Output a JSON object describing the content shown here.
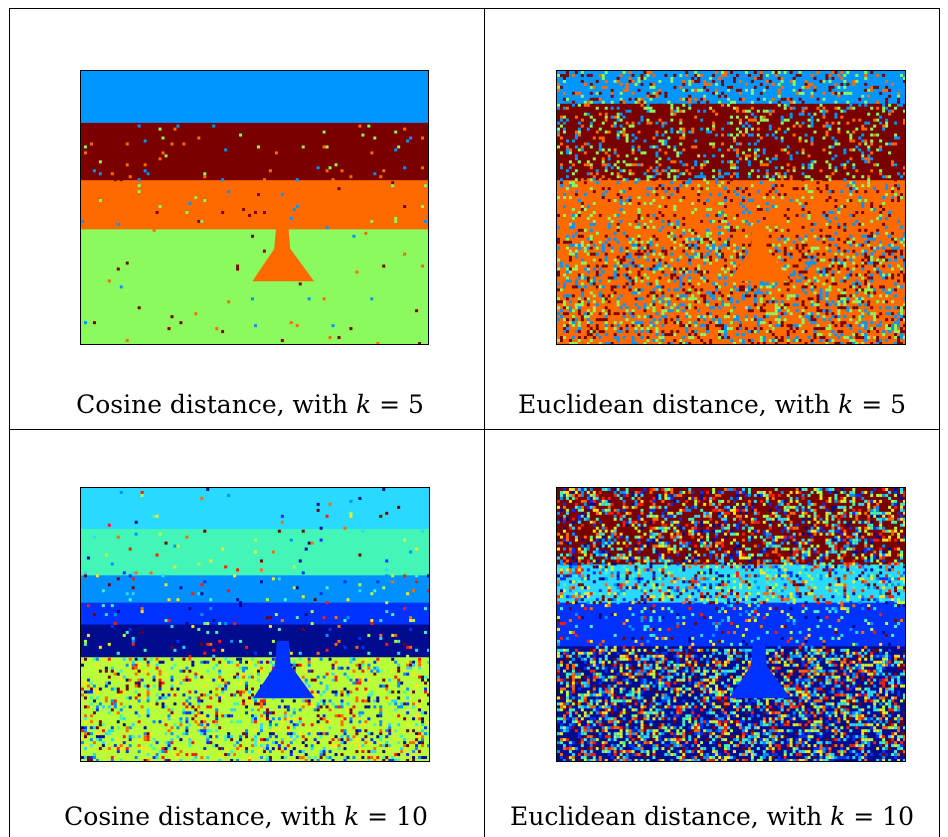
{
  "panels": [
    {
      "id": "cos5",
      "caption_prefix": "Cosine distance, with ",
      "k_symbol": "k",
      "eq": " = ",
      "k_value": "5",
      "palette": [
        "#0096ff",
        "#7a0000",
        "#ff6a00",
        "#8cf95e"
      ],
      "bands": [
        {
          "color": 0,
          "from": 0,
          "to": 0.19,
          "noise": 0.0
        },
        {
          "color": 1,
          "from": 0.19,
          "to": 0.4,
          "noise": 0.04
        },
        {
          "color": 2,
          "from": 0.4,
          "to": 0.58,
          "noise": 0.02
        },
        {
          "color": 3,
          "from": 0.58,
          "to": 1.0,
          "noise": 0.01
        }
      ]
    },
    {
      "id": "euc5",
      "caption_prefix": "Euclidean distance, with ",
      "k_symbol": "k",
      "eq": " = ",
      "k_value": "5",
      "palette": [
        "#0096ff",
        "#7a0000",
        "#ff6a00",
        "#8cf95e"
      ],
      "bands": [
        {
          "color": 0,
          "from": 0,
          "to": 0.12,
          "noise": 0.35
        },
        {
          "color": 1,
          "from": 0.12,
          "to": 0.4,
          "noise": 0.3
        },
        {
          "color": 2,
          "from": 0.4,
          "to": 0.6,
          "noise": 0.25
        },
        {
          "color": 2,
          "from": 0.6,
          "to": 1.0,
          "noise": 0.5
        }
      ]
    },
    {
      "id": "cos10",
      "caption_prefix": "Cosine distance, with ",
      "k_symbol": "k",
      "eq": " = ",
      "k_value": "10",
      "palette": [
        "#ff6a00",
        "#29d9ff",
        "#7a0000",
        "#44f5b8",
        "#0090ff",
        "#0032ff",
        "#000c8f",
        "#ff1a00",
        "#b8ff3a",
        "#ffe51a"
      ],
      "bands": [
        {
          "color": 1,
          "from": 0,
          "to": 0.15,
          "noise": 0.02
        },
        {
          "color": 3,
          "from": 0.15,
          "to": 0.32,
          "noise": 0.03
        },
        {
          "color": 4,
          "from": 0.32,
          "to": 0.42,
          "noise": 0.03
        },
        {
          "color": 5,
          "from": 0.42,
          "to": 0.5,
          "noise": 0.05
        },
        {
          "color": 6,
          "from": 0.5,
          "to": 0.62,
          "noise": 0.06
        },
        {
          "color": 8,
          "from": 0.62,
          "to": 1.0,
          "noise": 0.3
        }
      ]
    },
    {
      "id": "euc10",
      "caption_prefix": "Euclidean distance, with ",
      "k_symbol": "k",
      "eq": " = ",
      "k_value": "10",
      "palette": [
        "#ff6a00",
        "#29d9ff",
        "#7a0000",
        "#44f5b8",
        "#0090ff",
        "#0032ff",
        "#000c8f",
        "#ff1a00",
        "#b8ff3a",
        "#ffe51a"
      ],
      "bands": [
        {
          "color": 2,
          "from": 0,
          "to": 0.28,
          "noise": 0.5
        },
        {
          "color": 1,
          "from": 0.28,
          "to": 0.42,
          "noise": 0.45
        },
        {
          "color": 5,
          "from": 0.42,
          "to": 0.58,
          "noise": 0.15
        },
        {
          "color": 6,
          "from": 0.58,
          "to": 1.0,
          "noise": 0.6
        }
      ]
    }
  ]
}
